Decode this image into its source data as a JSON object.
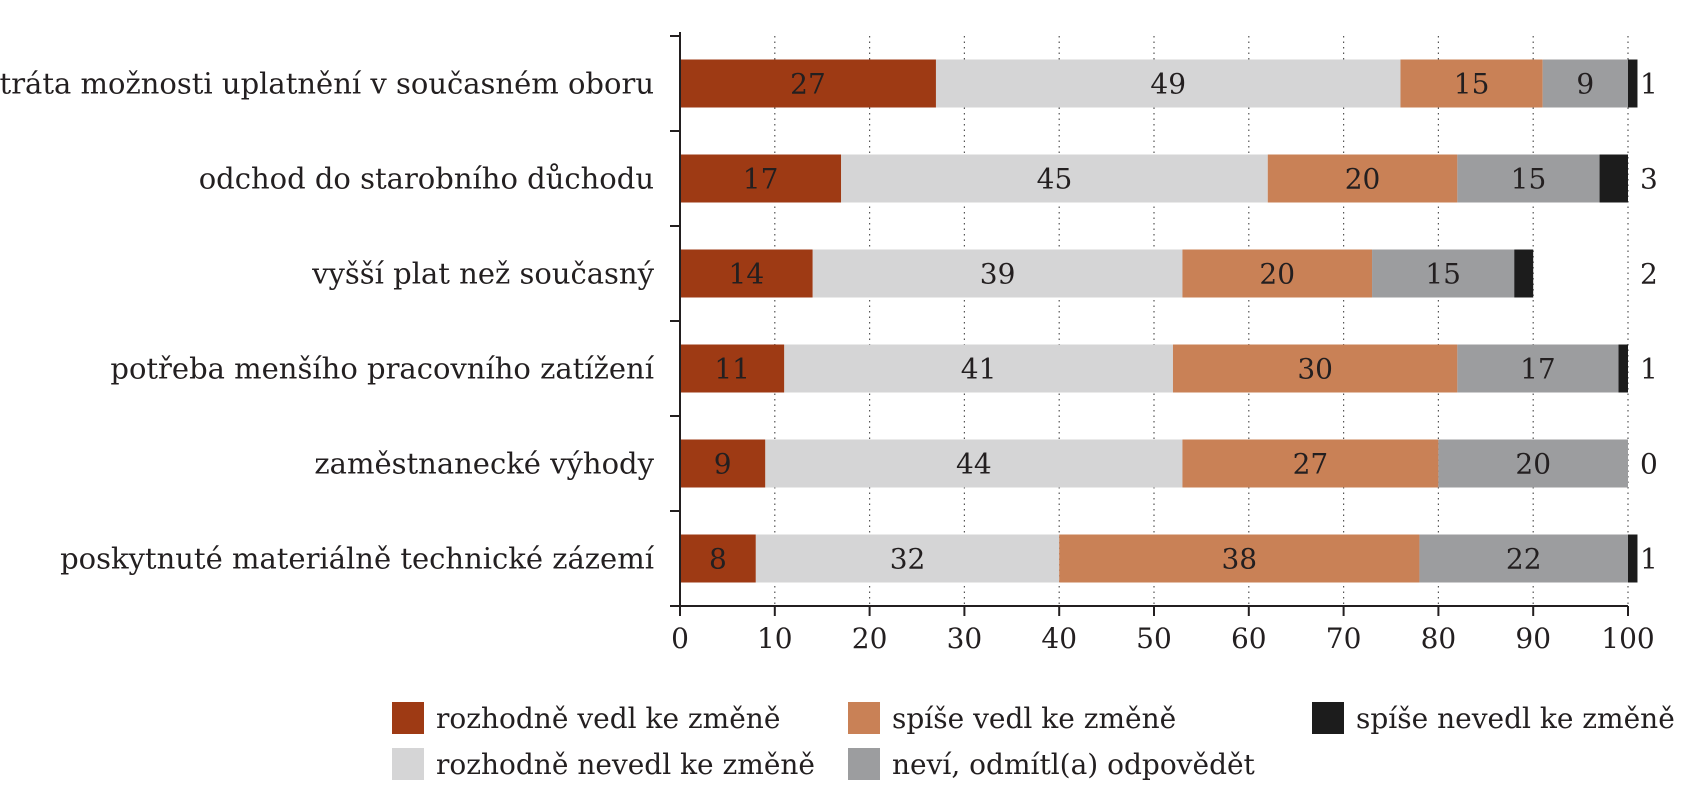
{
  "chart_data": {
    "type": "bar",
    "orientation": "horizontal",
    "stacked": true,
    "categories": [
      "ztráta možnosti uplatnění v současném oboru",
      "odchod do starobního důchodu",
      "vyšší plat než současný",
      "potřeba menšího pracovního zatížení",
      "zaměstnanecké výhody",
      "poskytnuté materiálně technické zázemí"
    ],
    "series": [
      {
        "name": "rozhodně vedl ke změně",
        "color": "#9e3a14",
        "values": [
          27,
          17,
          14,
          11,
          9,
          8
        ]
      },
      {
        "name": "rozhodně nevedl ke změně",
        "color": "#d5d5d6",
        "values": [
          49,
          45,
          39,
          41,
          44,
          32
        ]
      },
      {
        "name": "spíše vedl ke změně",
        "color": "#c98156",
        "values": [
          15,
          20,
          20,
          30,
          27,
          38
        ]
      },
      {
        "name": "neví, odmítl(a) odpovědět",
        "color": "#9c9d9f",
        "values": [
          9,
          15,
          15,
          17,
          20,
          22
        ]
      },
      {
        "name": "spíše nevedl ke změně",
        "color": "#1c1c1c",
        "values": [
          1,
          3,
          2,
          1,
          0,
          1
        ]
      }
    ],
    "stack_order": [
      0,
      1,
      2,
      3,
      4
    ],
    "xlim": [
      0,
      100
    ],
    "xticks": [
      0,
      10,
      20,
      30,
      40,
      50,
      60,
      70,
      80,
      90,
      100
    ],
    "grid": "vertical dotted",
    "legend_placement": "bottom",
    "legend_order": [
      [
        "rozhodně vedl ke změně",
        "spíše vedl ke změně",
        "spíše nevedl ke změně"
      ],
      [
        "rozhodně nevedl ke změně",
        "neví, odmítl(a) odpovědět"
      ]
    ]
  }
}
